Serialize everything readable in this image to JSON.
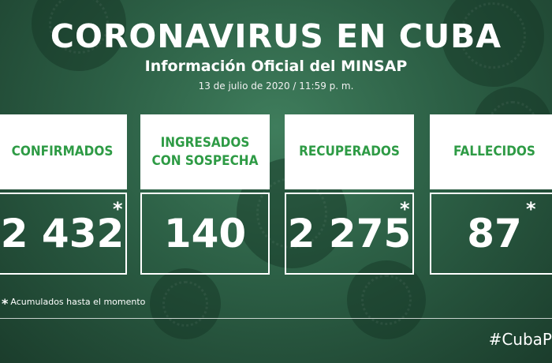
{
  "header": {
    "title": "CORONAVIRUS EN CUBA",
    "subtitle": "Información Oficial del MINSAP",
    "date": "13 de julio de 2020 / 11:59 p. m."
  },
  "stats": [
    {
      "label": "CONFIRMADOS",
      "label_line2": "",
      "value": "2 432",
      "asterisk": "*"
    },
    {
      "label": "INGRESADOS",
      "label_line2": "CON SOSPECHA",
      "value": "140",
      "asterisk": ""
    },
    {
      "label": "RECUPERADOS",
      "label_line2": "",
      "value": "2 275",
      "asterisk": "*"
    },
    {
      "label": "FALLECIDOS",
      "label_line2": "",
      "value": "87",
      "asterisk": "*"
    }
  ],
  "footnote": {
    "marker": "*",
    "text": "Acumulados hasta el momento"
  },
  "hashtag": "#CubaP",
  "colors": {
    "label_green": "#2e9b45",
    "background_green": "#2c5f45"
  }
}
